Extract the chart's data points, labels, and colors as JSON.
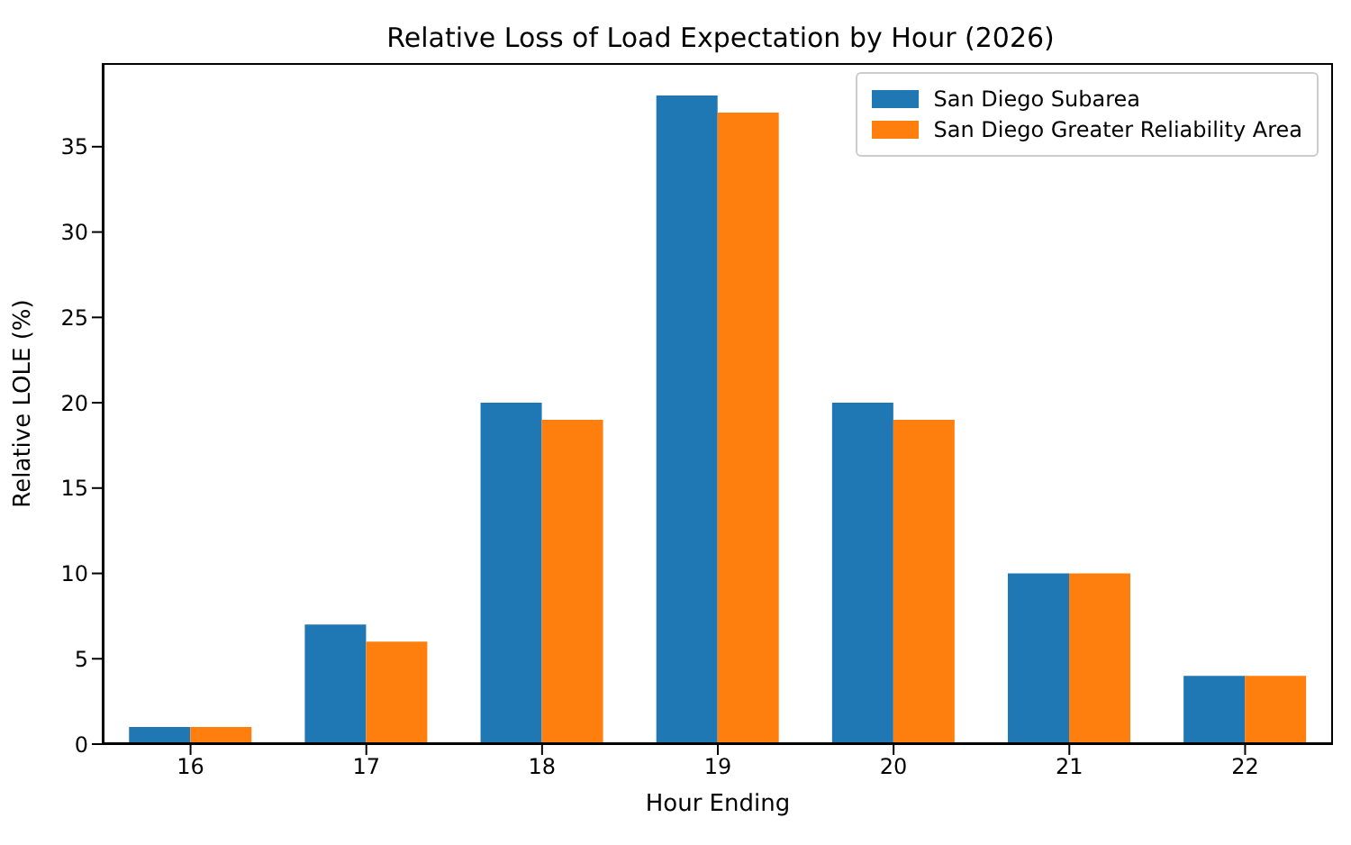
{
  "chart_data": {
    "type": "bar",
    "title": "Relative Loss of Load Expectation by Hour (2026)",
    "xlabel": "Hour Ending",
    "ylabel": "Relative LOLE (%)",
    "categories": [
      "16",
      "17",
      "18",
      "19",
      "20",
      "21",
      "22"
    ],
    "series": [
      {
        "name": "San Diego Subarea",
        "color": "#1f77b4",
        "values": [
          1,
          7,
          20,
          38,
          20,
          10,
          4
        ]
      },
      {
        "name": "San Diego Greater Reliability Area",
        "color": "#ff7f0e",
        "values": [
          1,
          6,
          19,
          37,
          19,
          10,
          4
        ]
      }
    ],
    "ylim": [
      0,
      39.9
    ],
    "yticks": [
      0,
      5,
      10,
      15,
      20,
      25,
      30,
      35
    ],
    "legend": "top right"
  }
}
